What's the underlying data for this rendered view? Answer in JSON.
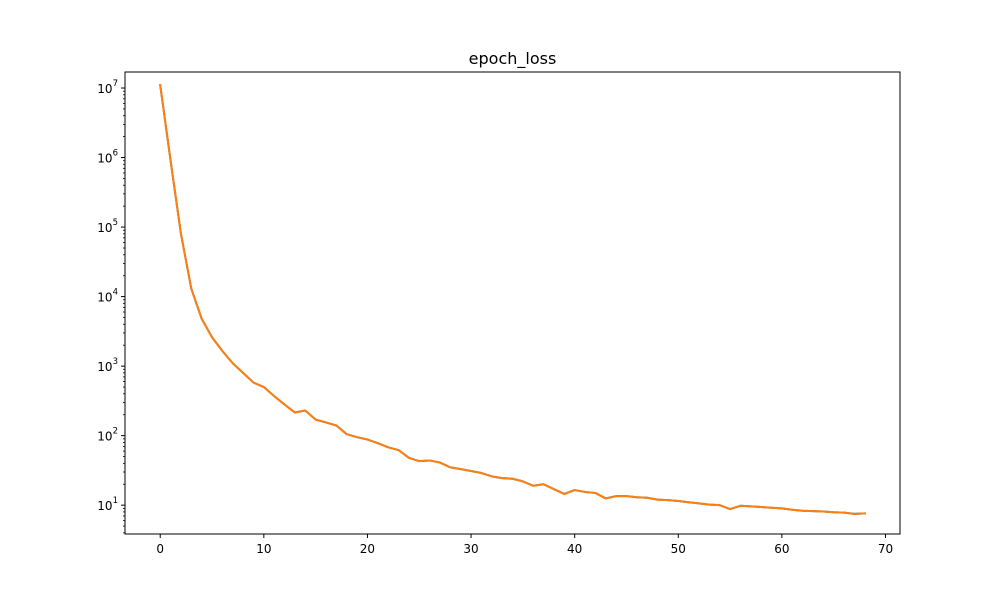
{
  "chart_data": {
    "type": "line",
    "title": "epoch_loss",
    "xlabel": "",
    "ylabel": "",
    "y_scale": "log",
    "xlim": [
      -3.4,
      71.4
    ],
    "ylim": [
      3.85,
      17000000
    ],
    "grid": false,
    "x_ticks": [
      0,
      10,
      20,
      30,
      40,
      50,
      60,
      70
    ],
    "x_tick_labels": [
      "0",
      "10",
      "20",
      "30",
      "40",
      "50",
      "60",
      "70"
    ],
    "y_ticks": [
      10,
      100,
      1000,
      10000,
      100000,
      1000000,
      10000000
    ],
    "y_tick_labels": [
      {
        "base": "10",
        "exp": "1"
      },
      {
        "base": "10",
        "exp": "2"
      },
      {
        "base": "10",
        "exp": "3"
      },
      {
        "base": "10",
        "exp": "4"
      },
      {
        "base": "10",
        "exp": "5"
      },
      {
        "base": "10",
        "exp": "6"
      },
      {
        "base": "10",
        "exp": "7"
      }
    ],
    "y_minor_ticks": [
      4,
      5,
      6,
      7,
      8,
      9,
      20,
      30,
      40,
      50,
      60,
      70,
      80,
      90,
      200,
      300,
      400,
      500,
      600,
      700,
      800,
      900,
      2000,
      3000,
      4000,
      5000,
      6000,
      7000,
      8000,
      9000,
      20000,
      30000,
      40000,
      50000,
      60000,
      70000,
      80000,
      90000,
      200000,
      300000,
      400000,
      500000,
      600000,
      700000,
      800000,
      900000,
      2000000,
      3000000,
      4000000,
      5000000,
      6000000,
      7000000,
      8000000,
      9000000
    ],
    "series": [
      {
        "color": "#1f77b4",
        "x": [
          0,
          1,
          2,
          3,
          4,
          5,
          6,
          7,
          8,
          9,
          10,
          11,
          12,
          13,
          14,
          15,
          16,
          17,
          18,
          19,
          20,
          21,
          22,
          23,
          24,
          25,
          26,
          27,
          28,
          29,
          30,
          31,
          32,
          33,
          34,
          35,
          36,
          37,
          38,
          39,
          40,
          41,
          42,
          43,
          44,
          45,
          46,
          47,
          48,
          49,
          50,
          51,
          52,
          53,
          54,
          55,
          56,
          57,
          58,
          59,
          60,
          61,
          62,
          63,
          64,
          65,
          66,
          67,
          68
        ],
        "y": [
          11000000,
          900000,
          80000,
          13000,
          4800,
          2600,
          1650,
          1100,
          800,
          580,
          500,
          370,
          280,
          215,
          230,
          170,
          155,
          140,
          105,
          95,
          88,
          78,
          68,
          62,
          48,
          43,
          44,
          41,
          35,
          33,
          31,
          29,
          26,
          24.5,
          24,
          22,
          19,
          20,
          17,
          14.5,
          16.5,
          15.5,
          15,
          12.5,
          13.5,
          13.5,
          13,
          12.8,
          12,
          11.8,
          11.5,
          11,
          10.6,
          10.2,
          10,
          8.8,
          9.8,
          9.6,
          9.4,
          9.2,
          9,
          8.6,
          8.3,
          8.2,
          8.1,
          7.9,
          7.8,
          7.5,
          7.6
        ]
      },
      {
        "color": "#ff7f0e",
        "x": [
          0,
          1,
          2,
          3,
          4,
          5,
          6,
          7,
          8,
          9,
          10,
          11,
          12,
          13,
          14,
          15,
          16,
          17,
          18,
          19,
          20,
          21,
          22,
          23,
          24,
          25,
          26,
          27,
          28,
          29,
          30,
          31,
          32,
          33,
          34,
          35,
          36,
          37,
          38,
          39,
          40,
          41,
          42,
          43,
          44,
          45,
          46,
          47,
          48,
          49,
          50,
          51,
          52,
          53,
          54,
          55,
          56,
          57,
          58,
          59,
          60,
          61,
          62,
          63,
          64,
          65,
          66,
          67,
          68
        ],
        "y": [
          11000000,
          900000,
          80000,
          13000,
          4800,
          2600,
          1650,
          1100,
          800,
          580,
          500,
          370,
          280,
          215,
          230,
          170,
          155,
          140,
          105,
          95,
          88,
          78,
          68,
          62,
          48,
          43,
          44,
          41,
          35,
          33,
          31,
          29,
          26,
          24.5,
          24,
          22,
          19,
          20,
          17,
          14.5,
          16.5,
          15.5,
          15,
          12.5,
          13.5,
          13.5,
          13,
          12.8,
          12,
          11.8,
          11.5,
          11,
          10.6,
          10.2,
          10,
          8.8,
          9.8,
          9.6,
          9.4,
          9.2,
          9,
          8.6,
          8.3,
          8.2,
          8.1,
          7.9,
          7.8,
          7.5,
          7.6
        ]
      }
    ]
  }
}
